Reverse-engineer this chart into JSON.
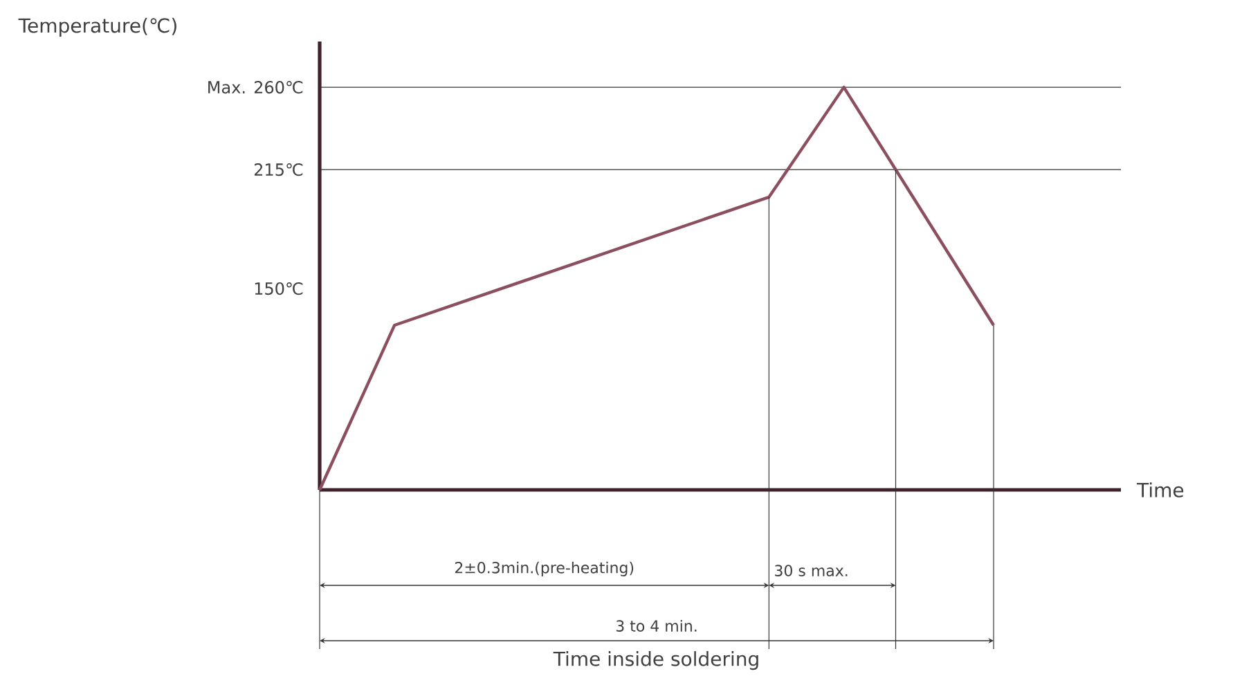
{
  "chart_data": {
    "type": "line",
    "ylabel": "Temperature(℃)",
    "categories": [
      null,
      null,
      null,
      null,
      null,
      null,
      null,
      null,
      null,
      null
    ],
    "ylim": [
      40,
      285
    ],
    "yticks": [
      {
        "value": 150,
        "label": "150℃"
      },
      {
        "value": 215,
        "label": "215℃"
      },
      {
        "value": 260,
        "label": "Max. 260℃"
      }
    ],
    "tick_labels": "y",
    "marker": "none",
    "line_style": "solid",
    "series": [
      {
        "color": "#8b4f5f",
        "values": [
          40,
          130,
          144,
          158,
          172,
          186,
          200,
          260,
          195,
          130
        ]
      }
    ],
    "ref_lines": [
      {
        "axis": "y",
        "value": 260
      },
      {
        "axis": "y",
        "value": 215
      }
    ],
    "annotations": [
      "2±0.3min.(pre-heating)",
      "30 s max.",
      "3 to 4 min.",
      "Time inside soldering",
      "Time"
    ]
  }
}
